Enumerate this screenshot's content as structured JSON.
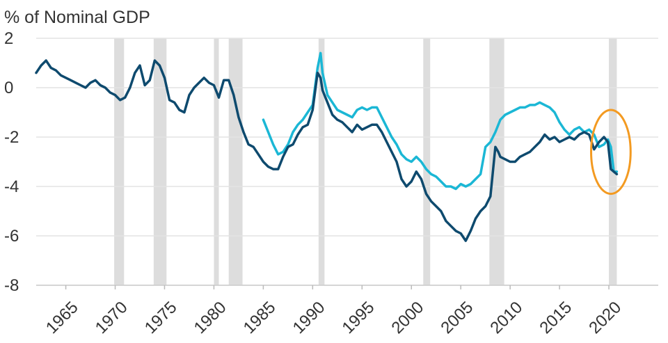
{
  "chart_data": {
    "type": "line",
    "title": "",
    "ylabel": "% of Nominal GDP",
    "xlabel": "",
    "xlim": [
      1962.0,
      2025.0
    ],
    "ylim": [
      -8,
      2
    ],
    "y_ticks": [
      2,
      0,
      -2,
      -4,
      -6,
      -8
    ],
    "y_tick_labels": [
      "2",
      "0",
      "-2",
      "-4",
      "-6",
      "-8"
    ],
    "x_ticks": [
      1965,
      1970,
      1975,
      1980,
      1985,
      1990,
      1995,
      2000,
      2005,
      2010,
      2015,
      2020
    ],
    "x_tick_labels": [
      "1965",
      "1970",
      "1975",
      "1980",
      "1985",
      "1990",
      "1995",
      "2000",
      "2005",
      "2010",
      "2015",
      "2020"
    ],
    "grid": true,
    "recessions": [
      [
        1969.9,
        1970.9
      ],
      [
        1973.9,
        1975.2
      ],
      [
        1980.0,
        1980.5
      ],
      [
        1981.5,
        1982.9
      ],
      [
        1990.6,
        1991.2
      ],
      [
        2001.2,
        2001.9
      ],
      [
        2007.9,
        2009.4
      ],
      [
        2020.0,
        2020.8
      ]
    ],
    "series": [
      {
        "name": "dark",
        "color": "#0e4a6e",
        "x": [
          1962.0,
          1962.5,
          1963.0,
          1963.5,
          1964.0,
          1964.5,
          1965.0,
          1965.5,
          1966.0,
          1966.5,
          1967.0,
          1967.5,
          1968.0,
          1968.5,
          1969.0,
          1969.5,
          1970.0,
          1970.5,
          1971.0,
          1971.5,
          1972.0,
          1972.5,
          1973.0,
          1973.5,
          1974.0,
          1974.5,
          1975.0,
          1975.5,
          1976.0,
          1976.5,
          1977.0,
          1977.5,
          1978.0,
          1978.5,
          1979.0,
          1979.5,
          1980.0,
          1980.5,
          1981.0,
          1981.5,
          1982.0,
          1982.5,
          1983.0,
          1983.5,
          1984.0,
          1984.5,
          1985.0,
          1985.5,
          1986.0,
          1986.5,
          1987.0,
          1987.5,
          1988.0,
          1988.5,
          1989.0,
          1989.5,
          1990.0,
          1990.5,
          1990.8,
          1991.0,
          1991.5,
          1992.0,
          1992.5,
          1993.0,
          1993.5,
          1994.0,
          1994.5,
          1995.0,
          1995.5,
          1996.0,
          1996.5,
          1997.0,
          1997.5,
          1998.0,
          1998.5,
          1999.0,
          1999.5,
          2000.0,
          2000.5,
          2001.0,
          2001.5,
          2002.0,
          2002.5,
          2003.0,
          2003.5,
          2004.0,
          2004.5,
          2005.0,
          2005.5,
          2006.0,
          2006.5,
          2007.0,
          2007.5,
          2008.0,
          2008.5,
          2008.8,
          2009.0,
          2009.5,
          2010.0,
          2010.5,
          2011.0,
          2011.5,
          2012.0,
          2012.5,
          2013.0,
          2013.5,
          2014.0,
          2014.5,
          2015.0,
          2015.5,
          2016.0,
          2016.5,
          2017.0,
          2017.5,
          2018.0,
          2018.5,
          2019.0,
          2019.5,
          2019.9,
          2020.2,
          2020.5,
          2020.8
        ],
        "values": [
          0.6,
          0.9,
          1.1,
          0.8,
          0.7,
          0.5,
          0.4,
          0.3,
          0.2,
          0.1,
          0.0,
          0.2,
          0.3,
          0.1,
          0.0,
          -0.2,
          -0.3,
          -0.5,
          -0.4,
          0.0,
          0.6,
          0.9,
          0.1,
          0.3,
          1.1,
          0.9,
          0.4,
          -0.5,
          -0.6,
          -0.9,
          -1.0,
          -0.3,
          0.0,
          0.2,
          0.4,
          0.2,
          0.1,
          -0.4,
          0.3,
          0.3,
          -0.3,
          -1.2,
          -1.8,
          -2.3,
          -2.4,
          -2.7,
          -3.0,
          -3.2,
          -3.3,
          -3.3,
          -2.8,
          -2.4,
          -2.3,
          -1.9,
          -1.6,
          -1.5,
          -0.9,
          0.6,
          0.4,
          -0.1,
          -0.6,
          -1.1,
          -1.3,
          -1.4,
          -1.6,
          -1.8,
          -1.5,
          -1.7,
          -1.6,
          -1.5,
          -1.5,
          -1.8,
          -2.2,
          -2.6,
          -3.0,
          -3.7,
          -4.0,
          -3.8,
          -3.4,
          -3.7,
          -4.3,
          -4.6,
          -4.8,
          -5.0,
          -5.4,
          -5.6,
          -5.8,
          -5.9,
          -6.2,
          -5.8,
          -5.3,
          -5.0,
          -4.8,
          -4.4,
          -2.4,
          -2.6,
          -2.8,
          -2.9,
          -3.0,
          -3.0,
          -2.8,
          -2.7,
          -2.6,
          -2.4,
          -2.2,
          -1.9,
          -2.1,
          -2.0,
          -2.2,
          -2.1,
          -2.0,
          -2.1,
          -1.9,
          -1.8,
          -1.9,
          -2.5,
          -2.2,
          -2.0,
          -2.2,
          -3.3,
          -3.4,
          -3.5
        ]
      },
      {
        "name": "light",
        "color": "#1bb7d5",
        "x": [
          1985.0,
          1985.5,
          1986.0,
          1986.5,
          1987.0,
          1987.5,
          1988.0,
          1988.5,
          1989.0,
          1989.5,
          1990.0,
          1990.5,
          1990.8,
          1991.0,
          1991.5,
          1992.0,
          1992.5,
          1993.0,
          1993.5,
          1994.0,
          1994.5,
          1995.0,
          1995.5,
          1996.0,
          1996.5,
          1997.0,
          1997.5,
          1998.0,
          1998.5,
          1999.0,
          1999.5,
          2000.0,
          2000.5,
          2001.0,
          2001.5,
          2002.0,
          2002.5,
          2003.0,
          2003.5,
          2004.0,
          2004.5,
          2005.0,
          2005.5,
          2006.0,
          2006.5,
          2007.0,
          2007.5,
          2008.0,
          2008.5,
          2009.0,
          2009.5,
          2010.0,
          2010.5,
          2011.0,
          2011.5,
          2012.0,
          2012.5,
          2013.0,
          2013.5,
          2014.0,
          2014.5,
          2015.0,
          2015.5,
          2016.0,
          2016.5,
          2017.0,
          2017.5,
          2018.0,
          2018.5,
          2019.0,
          2019.5,
          2019.9,
          2020.2,
          2020.5,
          2020.8
        ],
        "values": [
          -1.3,
          -1.8,
          -2.3,
          -2.7,
          -2.6,
          -2.3,
          -1.8,
          -1.5,
          -1.3,
          -1.0,
          -0.7,
          0.8,
          1.4,
          0.6,
          -0.3,
          -0.6,
          -0.9,
          -1.0,
          -1.1,
          -1.2,
          -0.9,
          -0.8,
          -0.9,
          -0.8,
          -0.8,
          -1.2,
          -1.6,
          -2.0,
          -2.3,
          -2.7,
          -2.9,
          -3.0,
          -2.8,
          -3.0,
          -3.3,
          -3.5,
          -3.6,
          -3.8,
          -4.0,
          -4.0,
          -4.1,
          -3.9,
          -4.0,
          -3.9,
          -3.7,
          -3.5,
          -2.4,
          -2.2,
          -1.8,
          -1.3,
          -1.1,
          -1.0,
          -0.9,
          -0.8,
          -0.8,
          -0.7,
          -0.7,
          -0.6,
          -0.7,
          -0.8,
          -1.0,
          -1.4,
          -1.7,
          -1.9,
          -1.7,
          -1.6,
          -1.8,
          -1.7,
          -1.9,
          -2.4,
          -2.3,
          -2.1,
          -2.4,
          -3.4,
          -3.4
        ]
      }
    ],
    "annotation": {
      "shape": "ellipse",
      "color": "#f39a21",
      "center": [
        2020.2,
        -2.6
      ],
      "rx_years": 2.0,
      "ry_units": 1.7
    }
  }
}
